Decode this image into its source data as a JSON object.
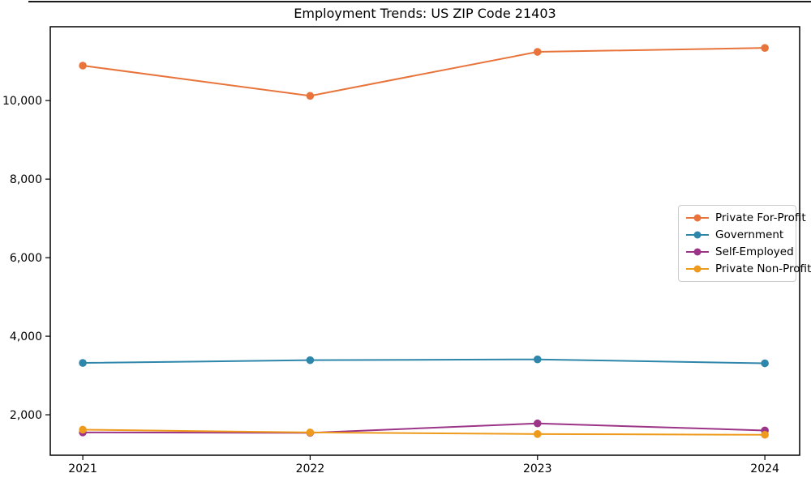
{
  "figure": {
    "background": "#ffffff",
    "axis_color": "#000000",
    "legend_border_color": "#cccccc"
  },
  "chart_data": {
    "type": "line",
    "title": "Employment Trends: US ZIP Code 21403",
    "xlabel": "",
    "ylabel": "",
    "grid": false,
    "legend_position": "center right",
    "x": [
      2021,
      2022,
      2023,
      2024
    ],
    "x_tick_labels": [
      "2021",
      "2022",
      "2023",
      "2024"
    ],
    "y_ticks": [
      2000,
      4000,
      6000,
      8000,
      10000
    ],
    "y_tick_labels": [
      "2,000",
      "4,000",
      "6,000",
      "8,000",
      "10,000"
    ],
    "xlim": [
      2020.857,
      2024.153
    ],
    "ylim": [
      970,
      11880
    ],
    "marker": "circle",
    "series": [
      {
        "name": "Private For-Profit",
        "color": "#e8743b",
        "values": [
          10890,
          10120,
          11240,
          11340
        ]
      },
      {
        "name": "Government",
        "color": "#2e86ab",
        "values": [
          3320,
          3390,
          3410,
          3310
        ]
      },
      {
        "name": "Self-Employed",
        "color": "#9c3587",
        "values": [
          1550,
          1540,
          1780,
          1600
        ]
      },
      {
        "name": "Private Non-Profit",
        "color": "#ee9b1d",
        "values": [
          1620,
          1550,
          1510,
          1490
        ]
      }
    ]
  }
}
